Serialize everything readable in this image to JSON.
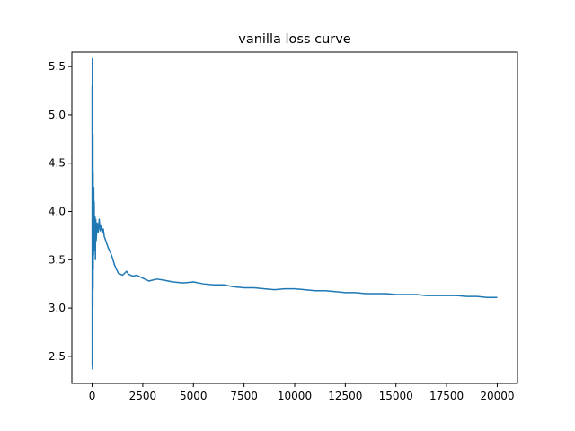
{
  "chart_data": {
    "type": "line",
    "title": "vanilla loss curve",
    "xlabel": "",
    "ylabel": "",
    "xlim": [
      -1000,
      21000
    ],
    "ylim": [
      2.22,
      5.65
    ],
    "grid": false,
    "legend": "none",
    "x_ticks": [
      0,
      2500,
      5000,
      7500,
      10000,
      12500,
      15000,
      17500,
      20000
    ],
    "x_tick_labels": [
      "0",
      "2500",
      "5000",
      "7500",
      "10000",
      "12500",
      "15000",
      "17500",
      "20000"
    ],
    "y_ticks": [
      2.5,
      3.0,
      3.5,
      4.0,
      4.5,
      5.0,
      5.5
    ],
    "y_tick_labels": [
      "2.5",
      "3.0",
      "3.5",
      "4.0",
      "4.5",
      "5.0",
      "5.5"
    ],
    "colors": {
      "line": "#1f77b4",
      "axes": "#000000",
      "background": "#ffffff"
    },
    "series": [
      {
        "values": [
          [
            0,
            5.3
          ],
          [
            5,
            2.4
          ],
          [
            10,
            5.58
          ],
          [
            15,
            2.37
          ],
          [
            20,
            5.1
          ],
          [
            25,
            2.6
          ],
          [
            30,
            5.58
          ],
          [
            35,
            3.0
          ],
          [
            40,
            4.8
          ],
          [
            45,
            3.2
          ],
          [
            50,
            4.4
          ],
          [
            55,
            3.4
          ],
          [
            60,
            4.2
          ],
          [
            70,
            3.55
          ],
          [
            80,
            4.25
          ],
          [
            90,
            3.6
          ],
          [
            100,
            4.1
          ],
          [
            120,
            3.65
          ],
          [
            140,
            3.95
          ],
          [
            160,
            3.5
          ],
          [
            180,
            3.92
          ],
          [
            200,
            3.7
          ],
          [
            250,
            3.88
          ],
          [
            300,
            3.78
          ],
          [
            350,
            3.92
          ],
          [
            400,
            3.8
          ],
          [
            450,
            3.85
          ],
          [
            500,
            3.78
          ],
          [
            550,
            3.82
          ],
          [
            600,
            3.74
          ],
          [
            700,
            3.68
          ],
          [
            800,
            3.62
          ],
          [
            900,
            3.58
          ],
          [
            1000,
            3.52
          ],
          [
            1100,
            3.45
          ],
          [
            1200,
            3.4
          ],
          [
            1300,
            3.36
          ],
          [
            1400,
            3.35
          ],
          [
            1500,
            3.34
          ],
          [
            1600,
            3.36
          ],
          [
            1700,
            3.38
          ],
          [
            1800,
            3.35
          ],
          [
            2000,
            3.33
          ],
          [
            2200,
            3.34
          ],
          [
            2400,
            3.32
          ],
          [
            2600,
            3.3
          ],
          [
            2800,
            3.28
          ],
          [
            3000,
            3.29
          ],
          [
            3200,
            3.3
          ],
          [
            3500,
            3.29
          ],
          [
            4000,
            3.27
          ],
          [
            4500,
            3.26
          ],
          [
            5000,
            3.27
          ],
          [
            5500,
            3.25
          ],
          [
            6000,
            3.24
          ],
          [
            6500,
            3.24
          ],
          [
            7000,
            3.22
          ],
          [
            7500,
            3.21
          ],
          [
            8000,
            3.21
          ],
          [
            8500,
            3.2
          ],
          [
            9000,
            3.19
          ],
          [
            9500,
            3.2
          ],
          [
            10000,
            3.2
          ],
          [
            10500,
            3.19
          ],
          [
            11000,
            3.18
          ],
          [
            11500,
            3.18
          ],
          [
            12000,
            3.17
          ],
          [
            12500,
            3.16
          ],
          [
            13000,
            3.16
          ],
          [
            13500,
            3.15
          ],
          [
            14000,
            3.15
          ],
          [
            14500,
            3.15
          ],
          [
            15000,
            3.14
          ],
          [
            15500,
            3.14
          ],
          [
            16000,
            3.14
          ],
          [
            16500,
            3.13
          ],
          [
            17000,
            3.13
          ],
          [
            17500,
            3.13
          ],
          [
            18000,
            3.13
          ],
          [
            18500,
            3.12
          ],
          [
            19000,
            3.12
          ],
          [
            19500,
            3.11
          ],
          [
            20000,
            3.11
          ]
        ]
      }
    ]
  }
}
